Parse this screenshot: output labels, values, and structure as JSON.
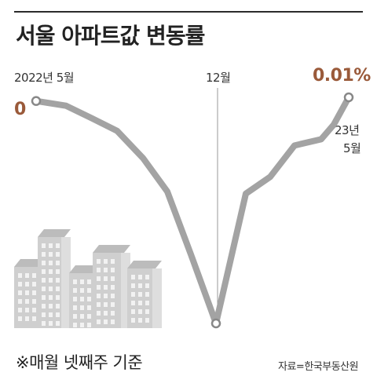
{
  "title": "서울 아파트값 변동률",
  "labels": {
    "start": "2022년 5월",
    "mid": "12월",
    "end_line1": "23년",
    "end_line2": "5월"
  },
  "annotations": {
    "start_value": "0",
    "end_value": "0.01%"
  },
  "footnote": "※매월 넷째주 기준",
  "source": "자료=한국부동산원",
  "colors": {
    "line": "#a3a3a3",
    "marker": "#888888",
    "accent": "#9a5a3a",
    "rule": "#2b2b2b",
    "building": "#cfcfcf"
  },
  "chart_data": {
    "type": "line",
    "title": "서울 아파트값 변동률",
    "x": [
      "2022년 5월",
      "",
      "",
      "",
      "",
      "",
      "",
      "12월",
      "",
      "",
      "",
      "",
      "",
      "23년 5월"
    ],
    "series": [
      {
        "values": [
          0,
          -0.03,
          -0.09,
          -0.15,
          -0.28,
          -0.44,
          -0.74,
          -1.07,
          -0.45,
          -0.37,
          -0.22,
          -0.19,
          -0.12,
          0.01
        ]
      }
    ],
    "ylim": [
      -1.1,
      0.05
    ],
    "grid": false,
    "legend": "none",
    "annotations": [
      "0",
      "0.01%"
    ]
  }
}
